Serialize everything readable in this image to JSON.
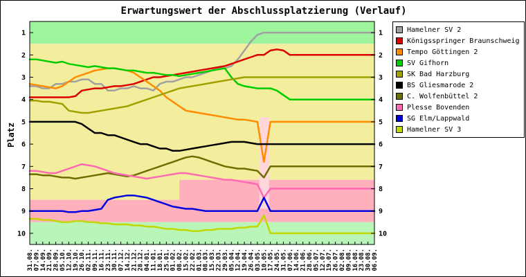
{
  "chart_data": {
    "type": "line",
    "title": "Erwartungswert der Abschlussplatzierung (Verlauf)",
    "ylabel": "Platz",
    "y_ticks": [
      1,
      2,
      3,
      4,
      5,
      6,
      7,
      8,
      9,
      10
    ],
    "y_range": [
      0.5,
      10.5
    ],
    "y_axis_inverted": true,
    "legend_position": "right",
    "x_labels": [
      "31.08.",
      "07.09.",
      "14.09.",
      "21.09.",
      "28.09.",
      "05.10.",
      "12.10.",
      "19.10.",
      "26.10.",
      "02.11.",
      "09.11.",
      "16.11.",
      "23.11.",
      "30.11.",
      "07.12.",
      "14.12.",
      "21.12.",
      "28.12.",
      "04.01.",
      "11.01.",
      "18.01.",
      "25.01.",
      "01.02.",
      "08.02.",
      "15.02.",
      "22.02.",
      "01.03.",
      "08.03.",
      "15.03.",
      "22.03.",
      "29.03.",
      "05.04.",
      "12.04.",
      "19.04.",
      "26.04.",
      "03.05.",
      "10.05.",
      "17.05.",
      "24.05.",
      "31.05.",
      "07.06.",
      "14.06.",
      "21.06.",
      "28.06.",
      "05.07.",
      "12.07.",
      "19.07.",
      "26.07.",
      "02.08.",
      "09.08.",
      "16.08.",
      "23.08.",
      "30.08.",
      "06.09."
    ],
    "bands": [
      {
        "name": "zone-top-green",
        "color": "#9df49d",
        "points": [
          [
            0,
            0.5
          ],
          [
            53,
            0.5
          ],
          [
            53,
            1.5
          ],
          [
            0,
            1.5
          ]
        ]
      },
      {
        "name": "zone-yellow",
        "color": "#f3ee9e",
        "points": [
          [
            0,
            1.5
          ],
          [
            53,
            1.5
          ],
          [
            53,
            7.6
          ],
          [
            23,
            7.6
          ],
          [
            23,
            8.5
          ],
          [
            0,
            8.5
          ]
        ]
      },
      {
        "name": "zone-pink",
        "color": "#ffb0bc",
        "points": [
          [
            0,
            8.5
          ],
          [
            23,
            8.5
          ],
          [
            23,
            7.6
          ],
          [
            53,
            7.6
          ],
          [
            53,
            9.5
          ],
          [
            0,
            9.5
          ]
        ]
      },
      {
        "name": "zone-bottom-green",
        "color": "#b9f4b9",
        "points": [
          [
            0,
            9.5
          ],
          [
            53,
            9.5
          ],
          [
            53,
            10.5
          ],
          [
            0,
            10.5
          ]
        ]
      },
      {
        "name": "zone-uncertainty",
        "color": "#ffd6da",
        "points": [
          [
            35.3,
            4.8
          ],
          [
            36.8,
            4.8
          ],
          [
            36.8,
            8.9
          ],
          [
            35.3,
            8.9
          ]
        ]
      }
    ],
    "series": [
      {
        "name": "Hamelner SV 2",
        "color": "#a0a0a0",
        "values": [
          3.4,
          3.4,
          3.5,
          3.5,
          3.3,
          3.3,
          3.2,
          3.2,
          3.1,
          3.1,
          3.3,
          3.3,
          3.6,
          3.6,
          3.5,
          3.5,
          3.4,
          3.5,
          3.5,
          3.6,
          3.3,
          3.2,
          3.2,
          3.1,
          3.0,
          3.0,
          2.9,
          2.8,
          2.7,
          2.6,
          2.6,
          2.5,
          2.2,
          1.8,
          1.4,
          1.1,
          1,
          1,
          1,
          1,
          1,
          1,
          1,
          1,
          1,
          1,
          1,
          1,
          1,
          1,
          1,
          1,
          1,
          1
        ]
      },
      {
        "name": "Königsspringer Braunschweig",
        "color": "#dd0000",
        "values": [
          3.9,
          3.9,
          3.9,
          3.9,
          3.9,
          3.9,
          3.9,
          3.85,
          3.6,
          3.55,
          3.5,
          3.5,
          3.45,
          3.4,
          3.4,
          3.35,
          3.3,
          3.2,
          3.1,
          3.0,
          3.0,
          2.95,
          2.9,
          2.85,
          2.8,
          2.75,
          2.7,
          2.65,
          2.6,
          2.55,
          2.5,
          2.4,
          2.3,
          2.2,
          2.1,
          2.0,
          2.0,
          1.8,
          1.75,
          1.8,
          2,
          2,
          2,
          2,
          2,
          2,
          2,
          2,
          2,
          2,
          2,
          2,
          2,
          2
        ]
      },
      {
        "name": "Tempo Göttingen 2",
        "color": "#ff8c00",
        "values": [
          3.3,
          3.35,
          3.4,
          3.45,
          3.5,
          3.4,
          3.2,
          3.0,
          2.9,
          2.8,
          2.7,
          2.65,
          2.6,
          2.6,
          2.65,
          2.7,
          2.8,
          3.0,
          3.2,
          3.4,
          3.6,
          3.9,
          4.1,
          4.3,
          4.5,
          4.55,
          4.6,
          4.65,
          4.7,
          4.75,
          4.8,
          4.85,
          4.9,
          4.9,
          4.95,
          5.0,
          6.8,
          5,
          5,
          5,
          5,
          5,
          5,
          5,
          5,
          5,
          5,
          5,
          5,
          5,
          5,
          5,
          5,
          5
        ]
      },
      {
        "name": "SV Gifhorn",
        "color": "#00cc00",
        "values": [
          2.2,
          2.2,
          2.25,
          2.3,
          2.35,
          2.3,
          2.4,
          2.45,
          2.5,
          2.55,
          2.5,
          2.55,
          2.6,
          2.6,
          2.65,
          2.7,
          2.7,
          2.75,
          2.8,
          2.8,
          2.85,
          2.9,
          2.9,
          2.95,
          2.9,
          2.85,
          2.8,
          2.75,
          2.7,
          2.65,
          2.6,
          3.0,
          3.3,
          3.4,
          3.45,
          3.5,
          3.5,
          3.5,
          3.6,
          3.8,
          4,
          4,
          4,
          4,
          4,
          4,
          4,
          4,
          4,
          4,
          4,
          4,
          4,
          4
        ]
      },
      {
        "name": "SK Bad Harzburg",
        "color": "#a0a000",
        "values": [
          4.05,
          4.05,
          4.1,
          4.1,
          4.15,
          4.2,
          4.5,
          4.55,
          4.6,
          4.6,
          4.55,
          4.5,
          4.45,
          4.4,
          4.35,
          4.3,
          4.2,
          4.1,
          4.0,
          3.9,
          3.8,
          3.7,
          3.6,
          3.5,
          3.45,
          3.4,
          3.35,
          3.3,
          3.25,
          3.2,
          3.15,
          3.1,
          3.05,
          3.0,
          3.0,
          3.0,
          3,
          3,
          3,
          3,
          3,
          3,
          3,
          3,
          3,
          3,
          3,
          3,
          3,
          3,
          3,
          3,
          3,
          3
        ]
      },
      {
        "name": "BS Gliesmarode 2",
        "color": "#000000",
        "values": [
          5,
          5,
          5,
          5,
          5,
          5,
          5,
          5,
          5.1,
          5.3,
          5.5,
          5.5,
          5.6,
          5.6,
          5.7,
          5.8,
          5.9,
          6.0,
          6.0,
          6.1,
          6.2,
          6.2,
          6.3,
          6.3,
          6.25,
          6.2,
          6.15,
          6.1,
          6.05,
          6.0,
          5.95,
          5.9,
          5.9,
          5.9,
          5.95,
          6.0,
          6,
          6,
          6,
          6,
          6,
          6,
          6,
          6,
          6,
          6,
          6,
          6,
          6,
          6,
          6,
          6,
          6,
          6
        ]
      },
      {
        "name": "C. Wolfenbüttel 2",
        "color": "#6e6e00",
        "values": [
          7.35,
          7.35,
          7.4,
          7.4,
          7.45,
          7.5,
          7.5,
          7.55,
          7.5,
          7.45,
          7.4,
          7.35,
          7.3,
          7.35,
          7.4,
          7.45,
          7.4,
          7.3,
          7.2,
          7.1,
          7.0,
          6.9,
          6.8,
          6.7,
          6.6,
          6.55,
          6.6,
          6.7,
          6.8,
          6.9,
          7.0,
          7.05,
          7.1,
          7.1,
          7.15,
          7.2,
          7.5,
          7,
          7,
          7,
          7,
          7,
          7,
          7,
          7,
          7,
          7,
          7,
          7,
          7,
          7,
          7,
          7,
          7
        ]
      },
      {
        "name": "Plesse Bovenden",
        "color": "#ff69b4",
        "values": [
          7.2,
          7.2,
          7.25,
          7.3,
          7.3,
          7.2,
          7.1,
          7.0,
          6.9,
          6.95,
          7.0,
          7.1,
          7.2,
          7.3,
          7.35,
          7.4,
          7.45,
          7.5,
          7.55,
          7.5,
          7.45,
          7.4,
          7.35,
          7.3,
          7.3,
          7.35,
          7.4,
          7.45,
          7.5,
          7.55,
          7.6,
          7.6,
          7.65,
          7.7,
          7.75,
          7.8,
          8.4,
          8,
          8,
          8,
          8,
          8,
          8,
          8,
          8,
          8,
          8,
          8,
          8,
          8,
          8,
          8,
          8,
          8
        ]
      },
      {
        "name": "SG Elm/Lappwald",
        "color": "#0000e0",
        "values": [
          9,
          9,
          9,
          9,
          9,
          9,
          9.05,
          9.05,
          9,
          9,
          8.95,
          8.9,
          8.5,
          8.4,
          8.35,
          8.3,
          8.3,
          8.35,
          8.4,
          8.5,
          8.6,
          8.7,
          8.8,
          8.85,
          8.9,
          8.9,
          8.95,
          9.0,
          9,
          9,
          9,
          9,
          9,
          9,
          9,
          9,
          8.4,
          9,
          9,
          9,
          9,
          9,
          9,
          9,
          9,
          9,
          9,
          9,
          9,
          9,
          9,
          9,
          9,
          9
        ]
      },
      {
        "name": "Hamelner SV 3",
        "color": "#c0d800",
        "values": [
          9.35,
          9.35,
          9.4,
          9.4,
          9.45,
          9.5,
          9.5,
          9.45,
          9.45,
          9.5,
          9.5,
          9.55,
          9.55,
          9.6,
          9.6,
          9.6,
          9.65,
          9.65,
          9.7,
          9.7,
          9.75,
          9.8,
          9.8,
          9.85,
          9.85,
          9.9,
          9.9,
          9.85,
          9.85,
          9.8,
          9.8,
          9.8,
          9.75,
          9.75,
          9.7,
          9.7,
          9.2,
          10,
          10,
          10,
          10,
          10,
          10,
          10,
          10,
          10,
          10,
          10,
          10,
          10,
          10,
          10,
          10,
          10
        ]
      }
    ]
  }
}
